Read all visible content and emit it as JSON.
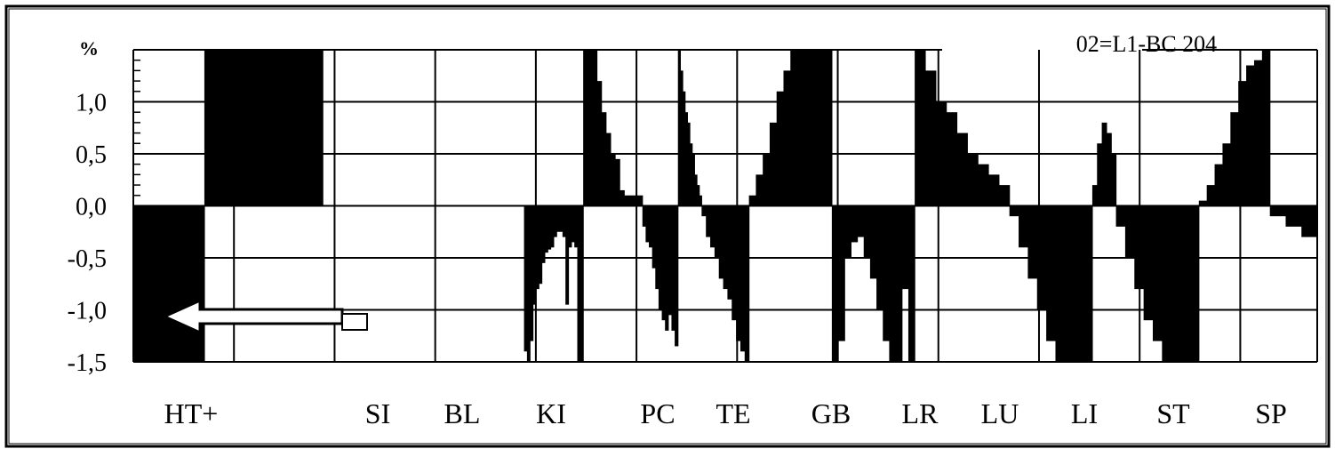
{
  "chart_data": {
    "type": "bar",
    "title": "02=L1-BC 204",
    "ylabel": "%",
    "ylim": [
      -1.5,
      1.5
    ],
    "yticks": [
      "-1,5",
      "-1,0",
      "-0,5",
      "0,0",
      "0,5",
      "1,0"
    ],
    "grid": true,
    "categories": [
      "HT+",
      "SI",
      "BL",
      "KI",
      "PC",
      "TE",
      "GB",
      "LR",
      "LU",
      "LI",
      "ST",
      "SP"
    ],
    "segments": [
      {
        "start": 0.0,
        "end": 0.06,
        "values": [
          -1.5,
          -1.5,
          -1.5,
          -1.5,
          -1.5,
          -1.5,
          -1.5,
          -1.5,
          -1.5,
          -1.5
        ]
      },
      {
        "start": 0.06,
        "end": 0.16,
        "values": [
          1.5,
          1.5,
          1.5,
          1.5,
          1.5,
          1.5,
          1.5,
          1.5,
          1.5,
          1.5,
          1.5,
          1.5,
          1.5,
          1.5,
          1.5
        ]
      },
      {
        "start": 0.16,
        "end": 0.33,
        "values": [
          0,
          0,
          0,
          0,
          0,
          0,
          0,
          0,
          0,
          0
        ]
      },
      {
        "start": 0.33,
        "end": 0.38,
        "values": [
          -1.4,
          -1.5,
          -1.3,
          -0.95,
          -0.8,
          -0.75,
          -0.55,
          -0.45,
          -0.42,
          -0.4,
          -0.3,
          -0.25,
          -0.25,
          -0.3,
          -0.95,
          -0.4,
          -0.35,
          -0.4,
          -1.5,
          -1.5
        ]
      },
      {
        "start": 0.38,
        "end": 0.43,
        "values": [
          1.5,
          1.5,
          1.5,
          1.2,
          0.9,
          0.7,
          0.5,
          0.45,
          0.15,
          0.1,
          0.1,
          0.1,
          0.1
        ]
      },
      {
        "start": 0.43,
        "end": 0.46,
        "values": [
          -0.2,
          -0.35,
          -0.4,
          -0.6,
          -0.8,
          -1.0,
          -1.1,
          -1.2,
          -1.05,
          -1.2,
          -1.35
        ]
      },
      {
        "start": 0.46,
        "end": 0.48,
        "values": [
          1.5,
          1.3,
          1.1,
          0.9,
          0.8,
          0.6,
          0.5,
          0.3,
          0.2,
          0.1
        ]
      },
      {
        "start": 0.48,
        "end": 0.52,
        "values": [
          -0.1,
          -0.3,
          -0.4,
          -0.5,
          -0.7,
          -0.8,
          -0.9,
          -1.1,
          -1.3,
          -1.4,
          -1.5
        ]
      },
      {
        "start": 0.52,
        "end": 0.59,
        "values": [
          0.1,
          0.3,
          0.5,
          0.8,
          1.1,
          1.3,
          1.5,
          1.5,
          1.5,
          1.5,
          1.5,
          1.5
        ]
      },
      {
        "start": 0.59,
        "end": 0.66,
        "values": [
          -1.5,
          -1.3,
          -0.5,
          -0.35,
          -0.3,
          -0.5,
          -0.7,
          -1.0,
          -1.3,
          -1.5,
          -1.5,
          -0.8,
          -1.5
        ]
      },
      {
        "start": 0.66,
        "end": 0.74,
        "values": [
          1.5,
          1.3,
          1.0,
          0.9,
          0.7,
          0.5,
          0.4,
          0.3,
          0.2
        ]
      },
      {
        "start": 0.74,
        "end": 0.81,
        "values": [
          -0.1,
          -0.4,
          -0.7,
          -1.0,
          -1.3,
          -1.5,
          -1.5,
          -1.5,
          -1.5
        ]
      },
      {
        "start": 0.81,
        "end": 0.83,
        "values": [
          0.2,
          0.6,
          0.8,
          0.7,
          0.5
        ]
      },
      {
        "start": 0.83,
        "end": 0.9,
        "values": [
          -0.2,
          -0.5,
          -0.8,
          -1.1,
          -1.3,
          -1.5,
          -1.5,
          -1.5,
          -1.5
        ]
      },
      {
        "start": 0.9,
        "end": 0.96,
        "values": [
          0.05,
          0.2,
          0.4,
          0.6,
          0.9,
          1.2,
          1.35,
          1.4,
          1.5
        ]
      },
      {
        "start": 0.96,
        "end": 1.0,
        "values": [
          -0.1,
          -0.2,
          -0.3
        ]
      }
    ]
  }
}
